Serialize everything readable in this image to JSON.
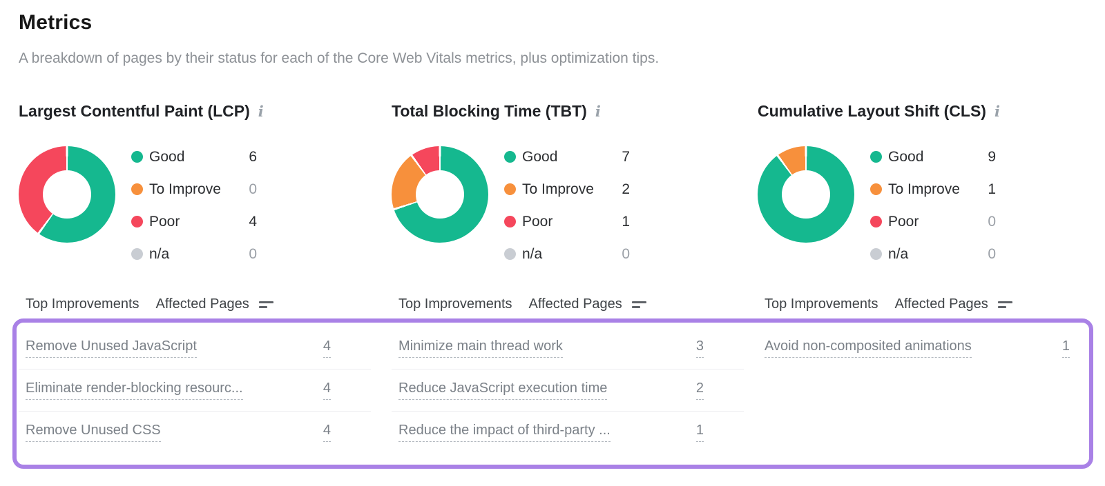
{
  "page": {
    "title": "Metrics",
    "subtitle": "A breakdown of pages by their status for each of the Core Web Vitals metrics, plus optimization tips."
  },
  "colors": {
    "good": "#15b88f",
    "to_improve": "#f7903c",
    "poor": "#f5475c",
    "na": "#c9cdd3",
    "highlight_border": "#a981e6"
  },
  "table": {
    "improvements_header": "Top Improvements",
    "affected_header": "Affected Pages"
  },
  "metrics": [
    {
      "slug": "lcp",
      "title": "Largest Contentful Paint (LCP)",
      "legend": [
        {
          "label": "Good",
          "value": "6",
          "color_key": "good"
        },
        {
          "label": "To Improve",
          "value": "0",
          "color_key": "to_improve"
        },
        {
          "label": "Poor",
          "value": "4",
          "color_key": "poor"
        },
        {
          "label": "n/a",
          "value": "0",
          "color_key": "na"
        }
      ],
      "improvements": [
        {
          "label": "Remove Unused JavaScript",
          "value": "4"
        },
        {
          "label": "Eliminate render-blocking resourc...",
          "value": "4"
        },
        {
          "label": "Remove Unused CSS",
          "value": "4"
        }
      ]
    },
    {
      "slug": "tbt",
      "title": "Total Blocking Time (TBT)",
      "legend": [
        {
          "label": "Good",
          "value": "7",
          "color_key": "good"
        },
        {
          "label": "To Improve",
          "value": "2",
          "color_key": "to_improve"
        },
        {
          "label": "Poor",
          "value": "1",
          "color_key": "poor"
        },
        {
          "label": "n/a",
          "value": "0",
          "color_key": "na"
        }
      ],
      "improvements": [
        {
          "label": "Minimize main thread work",
          "value": "3"
        },
        {
          "label": "Reduce JavaScript execution time",
          "value": "2"
        },
        {
          "label": "Reduce the impact of third-party ...",
          "value": "1"
        }
      ]
    },
    {
      "slug": "cls",
      "title": "Cumulative Layout Shift (CLS)",
      "legend": [
        {
          "label": "Good",
          "value": "9",
          "color_key": "good"
        },
        {
          "label": "To Improve",
          "value": "1",
          "color_key": "to_improve"
        },
        {
          "label": "Poor",
          "value": "0",
          "color_key": "poor"
        },
        {
          "label": "n/a",
          "value": "0",
          "color_key": "na"
        }
      ],
      "improvements": [
        {
          "label": "Avoid non-composited animations",
          "value": "1"
        }
      ]
    }
  ],
  "chart_data": [
    {
      "type": "pie",
      "title": "Largest Contentful Paint (LCP)",
      "categories": [
        "Good",
        "To Improve",
        "Poor",
        "n/a"
      ],
      "values": [
        6,
        0,
        4,
        0
      ],
      "colors": [
        "#15b88f",
        "#f7903c",
        "#f5475c",
        "#c9cdd3"
      ],
      "donut": true,
      "start_angle_deg": 0,
      "direction": "clockwise",
      "legend_position": "right"
    },
    {
      "type": "pie",
      "title": "Total Blocking Time (TBT)",
      "categories": [
        "Good",
        "To Improve",
        "Poor",
        "n/a"
      ],
      "values": [
        7,
        2,
        1,
        0
      ],
      "colors": [
        "#15b88f",
        "#f7903c",
        "#f5475c",
        "#c9cdd3"
      ],
      "donut": true,
      "start_angle_deg": 0,
      "direction": "clockwise",
      "legend_position": "right"
    },
    {
      "type": "pie",
      "title": "Cumulative Layout Shift (CLS)",
      "categories": [
        "Good",
        "To Improve",
        "Poor",
        "n/a"
      ],
      "values": [
        9,
        1,
        0,
        0
      ],
      "colors": [
        "#15b88f",
        "#f7903c",
        "#f5475c",
        "#c9cdd3"
      ],
      "donut": true,
      "start_angle_deg": 0,
      "direction": "clockwise",
      "legend_position": "right"
    }
  ]
}
